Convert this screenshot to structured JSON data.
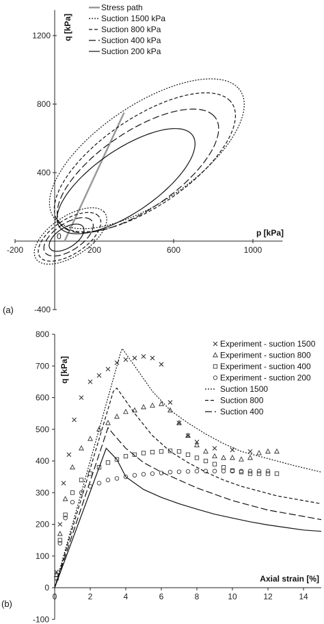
{
  "chart_data": [
    {
      "type": "line",
      "panel_label": "(a)",
      "xlabel": "p [kPa]",
      "ylabel": "q [kPa]",
      "xlim": [
        -200,
        1150
      ],
      "ylim": [
        -400,
        1350
      ],
      "xticks": [
        -200,
        200,
        600,
        1000
      ],
      "yticks": [
        -400,
        400,
        800,
        1200
      ],
      "origin_label": "0",
      "grid": false,
      "legend_position": "top-center",
      "series": [
        {
          "name": "Stress path",
          "style": "gray-solid",
          "points": [
            [
              50,
              0
            ],
            [
              350,
              750
            ]
          ]
        },
        {
          "name": "Suction 1500 kPa",
          "style": "dotted",
          "ellipses": [
            {
              "center": [
                465,
                510
              ],
              "half_axes": [
                600,
                270
              ],
              "tilt_deg": 40
            },
            {
              "center": [
                80,
                30
              ],
              "half_axes": [
                220,
                110
              ],
              "tilt_deg": 40
            }
          ]
        },
        {
          "name": "Suction 800 kPa",
          "style": "short-dash",
          "ellipses": [
            {
              "center": [
                455,
                460
              ],
              "half_axes": [
                560,
                245
              ],
              "tilt_deg": 40
            },
            {
              "center": [
                75,
                25
              ],
              "half_axes": [
                190,
                95
              ],
              "tilt_deg": 40
            }
          ]
        },
        {
          "name": "Suction 400 kPa",
          "style": "long-dash",
          "ellipses": [
            {
              "center": [
                420,
                410
              ],
              "half_axes": [
                500,
                215
              ],
              "tilt_deg": 40
            },
            {
              "center": [
                70,
                25
              ],
              "half_axes": [
                150,
                75
              ],
              "tilt_deg": 40
            }
          ]
        },
        {
          "name": "Suction 200 kPa",
          "style": "solid",
          "ellipses": [
            {
              "center": [
                360,
                350
              ],
              "half_axes": [
                430,
                175
              ],
              "tilt_deg": 40
            },
            {
              "center": [
                60,
                20
              ],
              "half_axes": [
                105,
                55
              ],
              "tilt_deg": 40
            }
          ]
        }
      ]
    },
    {
      "type": "scatter",
      "panel_label": "(b)",
      "xlabel": "Axial strain [%]",
      "ylabel": "q [kPa]",
      "xlim": [
        0,
        15
      ],
      "ylim": [
        -100,
        800
      ],
      "xticks": [
        0,
        2,
        4,
        6,
        8,
        10,
        12,
        14
      ],
      "yticks": [
        -100,
        0,
        100,
        200,
        300,
        400,
        500,
        600,
        700,
        800
      ],
      "grid": false,
      "legend_position": "top-right",
      "series": [
        {
          "name": "Experiment - suction 1500",
          "marker": "x",
          "x": [
            0.1,
            0.3,
            0.5,
            0.8,
            1.1,
            1.5,
            2.0,
            2.5,
            3.0,
            3.5,
            4.0,
            4.5,
            5.0,
            5.5,
            6.0,
            6.5,
            7.0,
            7.5,
            8.0,
            9.0,
            10.0,
            11.0
          ],
          "y": [
            50,
            200,
            330,
            420,
            530,
            600,
            650,
            670,
            690,
            710,
            720,
            725,
            730,
            725,
            705,
            585,
            520,
            480,
            460,
            440,
            435,
            430
          ]
        },
        {
          "name": "Experiment - suction 800",
          "marker": "triangle",
          "x": [
            0.1,
            0.3,
            0.6,
            1.0,
            1.5,
            2.0,
            2.5,
            3.0,
            3.5,
            4.0,
            4.5,
            5.0,
            5.5,
            6.0,
            6.5,
            7.0,
            7.5,
            8.0,
            8.5,
            9.0,
            9.5,
            10.0,
            10.5,
            11.0,
            11.5,
            12.0,
            12.5
          ],
          "y": [
            40,
            170,
            280,
            380,
            440,
            470,
            500,
            520,
            540,
            555,
            560,
            570,
            575,
            580,
            560,
            520,
            480,
            450,
            430,
            415,
            410,
            410,
            405,
            410,
            425,
            430,
            430
          ]
        },
        {
          "name": "Experiment - suction 400",
          "marker": "square",
          "x": [
            0.1,
            0.3,
            0.6,
            1.0,
            1.5,
            2.0,
            2.5,
            3.0,
            3.5,
            4.0,
            4.5,
            5.0,
            5.5,
            6.0,
            6.5,
            7.0,
            7.5,
            8.0,
            8.5,
            9.0,
            9.5,
            10.0,
            10.5,
            11.0,
            11.5,
            12.0,
            12.5
          ],
          "y": [
            30,
            150,
            230,
            300,
            340,
            360,
            380,
            395,
            405,
            415,
            420,
            425,
            428,
            430,
            432,
            430,
            420,
            410,
            400,
            390,
            380,
            370,
            365,
            360,
            360,
            360,
            360
          ]
        },
        {
          "name": "Experiment - suction 200",
          "marker": "circle",
          "x": [
            0.1,
            0.3,
            0.6,
            1.0,
            1.5,
            2.0,
            2.5,
            3.0,
            3.5,
            4.0,
            4.5,
            5.0,
            5.5,
            6.0,
            6.5,
            7.0,
            7.5,
            8.0,
            8.5,
            9.0,
            9.5,
            10.0,
            10.5,
            11.0,
            11.5,
            12.0
          ],
          "y": [
            30,
            140,
            220,
            270,
            300,
            320,
            330,
            340,
            345,
            350,
            355,
            358,
            360,
            362,
            365,
            366,
            367,
            368,
            368,
            368,
            368,
            368,
            368,
            368,
            368,
            368
          ]
        },
        {
          "name": "Suction 1500",
          "style": "dotted",
          "x": [
            0,
            3.7,
            3.8,
            4.5,
            5.5,
            6.5,
            7.5,
            8.5,
            9.5,
            10.5,
            11.5,
            12.5,
            13.5,
            15.0
          ],
          "y": [
            0,
            740,
            755,
            700,
            620,
            560,
            520,
            485,
            455,
            430,
            415,
            400,
            385,
            365
          ]
        },
        {
          "name": "Suction 800",
          "style": "short-dash",
          "x": [
            0,
            3.3,
            3.5,
            4.5,
            5.5,
            6.5,
            7.5,
            8.5,
            9.5,
            10.5,
            11.5,
            12.5,
            13.5,
            15.0
          ],
          "y": [
            0,
            620,
            630,
            550,
            480,
            430,
            395,
            365,
            340,
            320,
            305,
            290,
            280,
            265
          ]
        },
        {
          "name": "Suction 400",
          "style": "long-dash",
          "x": [
            0,
            3.0,
            3.3,
            4.0,
            5.0,
            6.0,
            7.0,
            8.0,
            9.0,
            10.0,
            11.0,
            12.0,
            13.0,
            14.0,
            15.0
          ],
          "y": [
            0,
            505,
            485,
            440,
            395,
            365,
            340,
            315,
            295,
            275,
            260,
            245,
            235,
            225,
            215
          ]
        },
        {
          "name": "",
          "style": "solid",
          "x": [
            0,
            2.9,
            3.5,
            4.0,
            5.0,
            6.0,
            7.0,
            8.0,
            9.0,
            10.0,
            11.0,
            12.0,
            13.0,
            14.0,
            15.0
          ],
          "y": [
            0,
            440,
            405,
            350,
            310,
            285,
            265,
            248,
            232,
            220,
            208,
            198,
            190,
            182,
            178
          ]
        }
      ]
    }
  ]
}
